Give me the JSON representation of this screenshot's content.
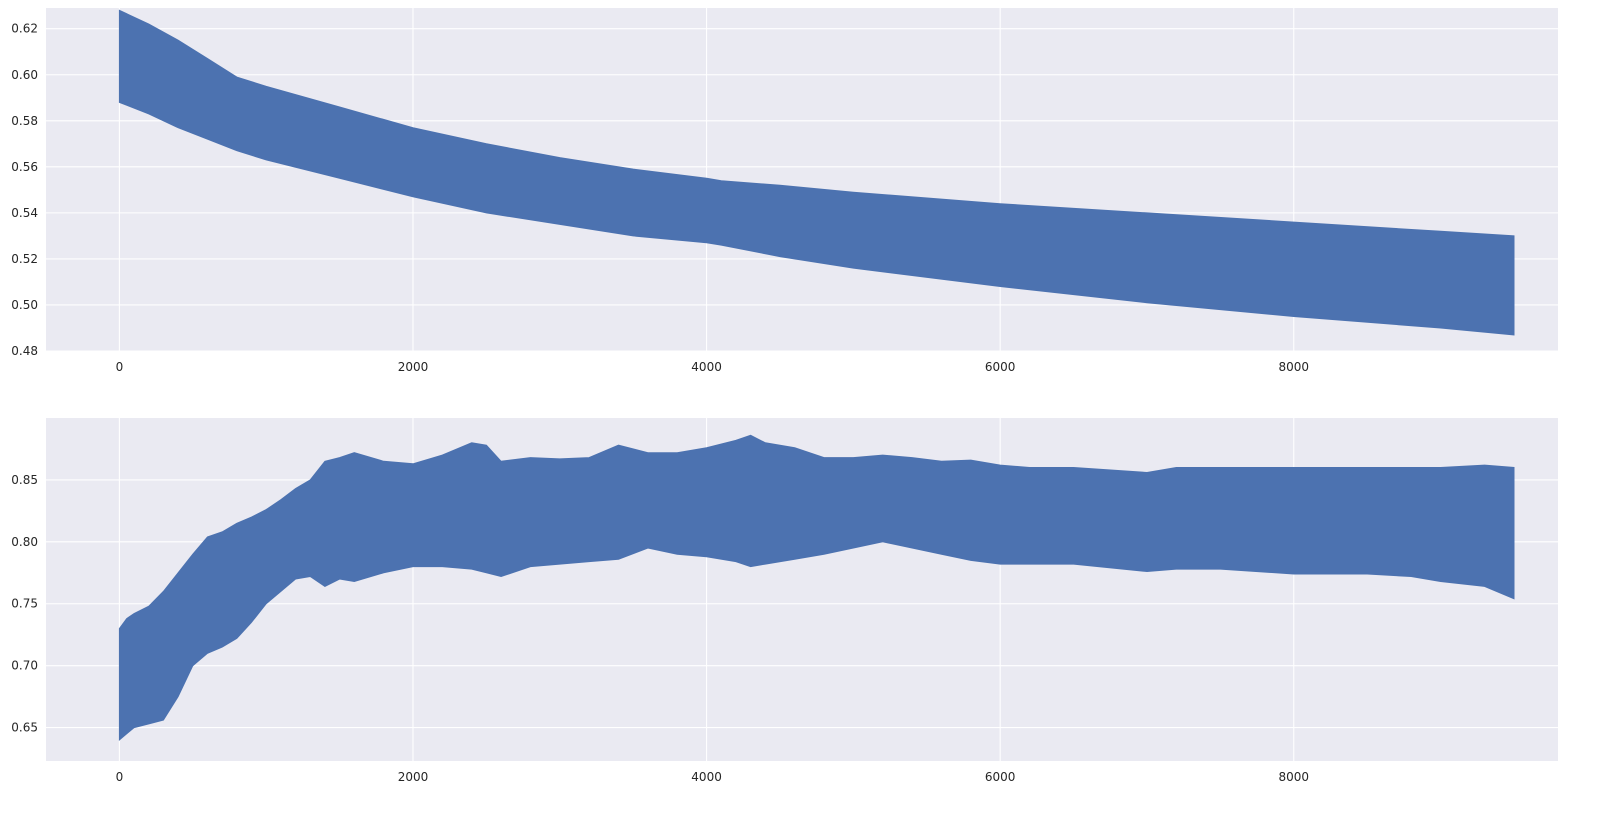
{
  "chart_data": [
    {
      "type": "area",
      "title": "",
      "xlabel": "",
      "ylabel": "",
      "xlim": [
        -500,
        9800
      ],
      "ylim": [
        0.48,
        0.629
      ],
      "x_ticks": [
        0,
        2000,
        4000,
        6000,
        8000
      ],
      "y_ticks": [
        0.48,
        0.5,
        0.52,
        0.54,
        0.56,
        0.58,
        0.6,
        0.62
      ],
      "grid": true,
      "colors": {
        "fill": "#4c72b0",
        "background": "#eaeaf2",
        "grid": "#ffffff"
      },
      "series": [
        {
          "x": [
            0,
            200,
            400,
            600,
            800,
            1000,
            1500,
            2000,
            2500,
            3000,
            3500,
            4000,
            4100,
            4500,
            5000,
            6000,
            7000,
            8000,
            9000,
            9500
          ],
          "upper": [
            0.628,
            0.622,
            0.615,
            0.607,
            0.599,
            0.595,
            0.586,
            0.577,
            0.57,
            0.564,
            0.559,
            0.555,
            0.554,
            0.552,
            0.549,
            0.544,
            0.54,
            0.536,
            0.532,
            0.53
          ],
          "lower": [
            0.588,
            0.583,
            0.577,
            0.572,
            0.567,
            0.563,
            0.555,
            0.547,
            0.54,
            0.535,
            0.53,
            0.527,
            0.526,
            0.521,
            0.516,
            0.508,
            0.501,
            0.495,
            0.49,
            0.487
          ]
        }
      ]
    },
    {
      "type": "area",
      "title": "",
      "xlabel": "",
      "ylabel": "",
      "xlim": [
        -500,
        9800
      ],
      "ylim": [
        0.623,
        0.9
      ],
      "x_ticks": [
        0,
        2000,
        4000,
        6000,
        8000
      ],
      "y_ticks": [
        0.65,
        0.7,
        0.75,
        0.8,
        0.85
      ],
      "grid": true,
      "colors": {
        "fill": "#4c72b0",
        "background": "#eaeaf2",
        "grid": "#ffffff"
      },
      "series": [
        {
          "x": [
            0,
            50,
            100,
            200,
            300,
            400,
            500,
            600,
            700,
            800,
            900,
            1000,
            1100,
            1200,
            1300,
            1400,
            1500,
            1600,
            1800,
            2000,
            2200,
            2400,
            2500,
            2600,
            2800,
            3000,
            3200,
            3400,
            3600,
            3800,
            4000,
            4200,
            4300,
            4400,
            4600,
            4800,
            5000,
            5200,
            5400,
            5600,
            5800,
            6000,
            6200,
            6500,
            7000,
            7200,
            7500,
            8000,
            8500,
            8800,
            9000,
            9300,
            9500
          ],
          "upper": [
            0.73,
            0.738,
            0.742,
            0.748,
            0.76,
            0.775,
            0.79,
            0.804,
            0.808,
            0.815,
            0.82,
            0.826,
            0.834,
            0.843,
            0.85,
            0.865,
            0.868,
            0.872,
            0.865,
            0.863,
            0.87,
            0.88,
            0.878,
            0.865,
            0.868,
            0.867,
            0.868,
            0.878,
            0.872,
            0.872,
            0.876,
            0.882,
            0.886,
            0.88,
            0.876,
            0.868,
            0.868,
            0.87,
            0.868,
            0.865,
            0.866,
            0.862,
            0.86,
            0.86,
            0.856,
            0.86,
            0.86,
            0.86,
            0.86,
            0.86,
            0.86,
            0.862,
            0.86
          ],
          "lower": [
            0.64,
            0.645,
            0.65,
            0.653,
            0.656,
            0.675,
            0.7,
            0.71,
            0.715,
            0.722,
            0.735,
            0.75,
            0.76,
            0.77,
            0.772,
            0.764,
            0.77,
            0.768,
            0.775,
            0.78,
            0.78,
            0.778,
            0.775,
            0.772,
            0.78,
            0.782,
            0.784,
            0.786,
            0.795,
            0.79,
            0.788,
            0.784,
            0.78,
            0.782,
            0.786,
            0.79,
            0.795,
            0.8,
            0.795,
            0.79,
            0.785,
            0.782,
            0.782,
            0.782,
            0.776,
            0.778,
            0.778,
            0.774,
            0.774,
            0.772,
            0.768,
            0.764,
            0.754
          ]
        }
      ]
    }
  ]
}
